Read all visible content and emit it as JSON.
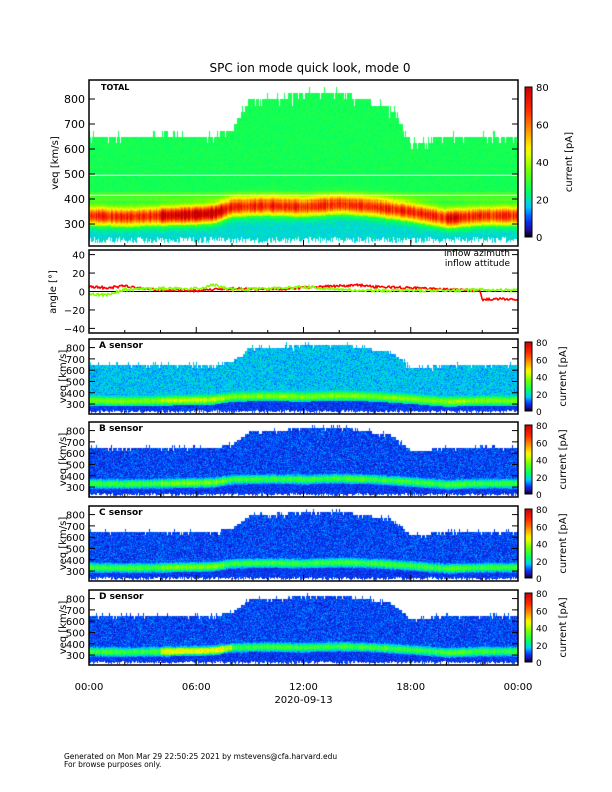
{
  "chart_data": {
    "type": "heatmap",
    "title": "SPC ion mode quick look, mode 0",
    "x_tick_labels": [
      "00:00",
      "06:00",
      "12:00",
      "18:00",
      "00:00"
    ],
    "x_range_hours": [
      0,
      24
    ],
    "xlabel": "2020-09-13",
    "spectrogram_panels": [
      {
        "label": "TOTAL",
        "ylabel": "v_eq [km/s]",
        "y_ticks": [
          300,
          400,
          500,
          600,
          700,
          800
        ],
        "ylim": [
          212,
          876
        ],
        "colorbar_label": "current [pA]",
        "colorbar_ticks": [
          0,
          20,
          40,
          60,
          80
        ],
        "colorbar_range": [
          0,
          80
        ],
        "style": "total",
        "reference_lines": [
          415,
          495
        ]
      },
      {
        "label": "A sensor",
        "ylabel": "v_eq [km/s]",
        "y_ticks": [
          300,
          400,
          500,
          600,
          700,
          800
        ],
        "ylim": [
          212,
          876
        ],
        "colorbar_label": "current [pA]",
        "colorbar_ticks": [
          0,
          20,
          40,
          60,
          80
        ],
        "colorbar_range": [
          0,
          80
        ],
        "style": "sensorA"
      },
      {
        "label": "B sensor",
        "ylabel": "v_eq [km/s]",
        "y_ticks": [
          300,
          400,
          500,
          600,
          700,
          800
        ],
        "ylim": [
          212,
          876
        ],
        "colorbar_label": "current [pA]",
        "colorbar_ticks": [
          0,
          20,
          40,
          60,
          80
        ],
        "colorbar_range": [
          0,
          80
        ],
        "style": "sensorB"
      },
      {
        "label": "C sensor",
        "ylabel": "v_eq [km/s]",
        "y_ticks": [
          300,
          400,
          500,
          600,
          700,
          800
        ],
        "ylim": [
          212,
          876
        ],
        "colorbar_label": "current [pA]",
        "colorbar_ticks": [
          0,
          20,
          40,
          60,
          80
        ],
        "colorbar_range": [
          0,
          80
        ],
        "style": "sensorC"
      },
      {
        "label": "D sensor",
        "ylabel": "v_eq [km/s]",
        "y_ticks": [
          300,
          400,
          500,
          600,
          700,
          800
        ],
        "ylim": [
          212,
          876
        ],
        "colorbar_label": "current [pA]",
        "colorbar_ticks": [
          0,
          20,
          40,
          60,
          80
        ],
        "colorbar_range": [
          0,
          80
        ],
        "style": "sensorD"
      }
    ],
    "core_velocity_kms": {
      "hours": [
        0,
        2,
        4,
        6,
        7,
        8,
        10,
        12,
        14,
        16,
        18,
        20,
        22,
        24
      ],
      "values": [
        335,
        330,
        335,
        340,
        345,
        370,
        375,
        370,
        380,
        370,
        350,
        325,
        335,
        335
      ]
    },
    "upper_cutoff_kms": {
      "hours": [
        0,
        7,
        8,
        9,
        14,
        17,
        18,
        20,
        24
      ],
      "values": [
        650,
        650,
        680,
        800,
        830,
        760,
        620,
        650,
        650
      ]
    },
    "angle_panel": {
      "ylabel": "angle [°]",
      "y_ticks": [
        -40,
        -20,
        0,
        20,
        40
      ],
      "ylim": [
        -45,
        45
      ],
      "series": [
        {
          "name": "inflow azimuth",
          "color": "#ff0000",
          "hours": [
            0,
            1,
            2,
            3,
            4,
            6,
            8,
            10,
            12,
            14,
            15,
            16,
            18,
            20,
            21.9,
            22,
            23,
            24
          ],
          "values": [
            5,
            4,
            6,
            3,
            2,
            1,
            3,
            2,
            4,
            6,
            7,
            5,
            4,
            2,
            1,
            -9,
            -8,
            -9
          ]
        },
        {
          "name": "inflow attitude",
          "color": "#80ff00",
          "hours": [
            0,
            1,
            2,
            4,
            6,
            7,
            8,
            10,
            12,
            14,
            16,
            18,
            20,
            22,
            24
          ],
          "values": [
            -3,
            -4,
            2,
            3,
            3,
            7,
            2,
            3,
            5,
            2,
            1,
            1,
            1,
            2,
            1
          ]
        }
      ]
    }
  },
  "footer": {
    "line1": "Generated on Mon Mar 29 22:50:25 2021 by mstevens@cfa.harvard.edu",
    "line2": "For browse purposes only."
  }
}
